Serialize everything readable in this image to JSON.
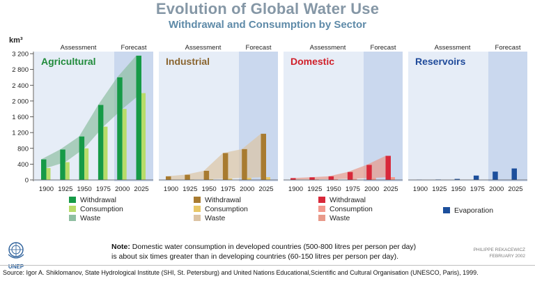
{
  "title": "Evolution of Global Water Use",
  "subtitle": "Withdrawal and Consumption by Sector",
  "note": {
    "label": "Note:",
    "line1": "Domestic water consumption in developed countries (500-800 litres per person per day)",
    "line2": "is about six times greater than in developing countries (60-150 litres per person per day)."
  },
  "logo_text": "UNEP",
  "credit": {
    "author": "PHILIPPE REKACEWICZ",
    "date": "FEBRUARY 2002"
  },
  "source": "Source: Igor A. Shiklomanov, State Hydrological Institute (SHI, St. Petersburg) and United Nations Educational,Scientific and Cultural Organisation (UNESCO, Paris), 1999.",
  "chart_data": {
    "type": "bar",
    "ylabel": "km³",
    "ylim": [
      0,
      3200
    ],
    "yticks": [
      "0",
      "400",
      "800",
      "1 200",
      "1 600",
      "2 000",
      "2 400",
      "2 800",
      "3 200"
    ],
    "categories": [
      "1900",
      "1925",
      "1950",
      "1975",
      "2000",
      "2025"
    ],
    "phase_labels": [
      "Assessment",
      "Forecast"
    ],
    "panels": [
      {
        "name": "Agricultural",
        "title_color": "#1f8a3a",
        "colors": {
          "withdrawal": "#169a47",
          "consumption": "#b8dc6a",
          "waste": "#8fbfa2"
        },
        "series": [
          {
            "name": "Withdrawal",
            "values": [
              520,
              770,
              1100,
              1900,
              2600,
              3150
            ]
          },
          {
            "name": "Consumption",
            "values": [
              300,
              450,
              800,
              1350,
              1800,
              2200
            ]
          }
        ],
        "legend": [
          "Withdrawal",
          "Consumption",
          "Waste"
        ]
      },
      {
        "name": "Industrial",
        "title_color": "#8a6530",
        "colors": {
          "withdrawal": "#a87b30",
          "consumption": "#e8c868",
          "waste": "#dcc4a4"
        },
        "series": [
          {
            "name": "Withdrawal",
            "values": [
              90,
              130,
              230,
              680,
              780,
              1170
            ]
          },
          {
            "name": "Consumption",
            "values": [
              5,
              10,
              18,
              35,
              55,
              70
            ]
          }
        ],
        "legend": [
          "Withdrawal",
          "Consumption",
          "Waste"
        ]
      },
      {
        "name": "Domestic",
        "title_color": "#d0202a",
        "colors": {
          "withdrawal": "#d8283a",
          "consumption": "#f39a8e",
          "waste": "#e89a8a"
        },
        "series": [
          {
            "name": "Withdrawal",
            "values": [
              45,
              65,
              90,
              200,
              380,
              610
            ]
          },
          {
            "name": "Consumption",
            "values": [
              10,
              15,
              20,
              30,
              50,
              70
            ]
          }
        ],
        "legend": [
          "Withdrawal",
          "Consumption",
          "Waste"
        ]
      },
      {
        "name": "Reservoirs",
        "title_color": "#1f4a9a",
        "colors": {
          "evaporation": "#1c4f9c"
        },
        "series": [
          {
            "name": "Evaporation",
            "values": [
              5,
              10,
              25,
              110,
              210,
              290
            ]
          }
        ],
        "legend": [
          "Evaporation"
        ]
      }
    ]
  }
}
